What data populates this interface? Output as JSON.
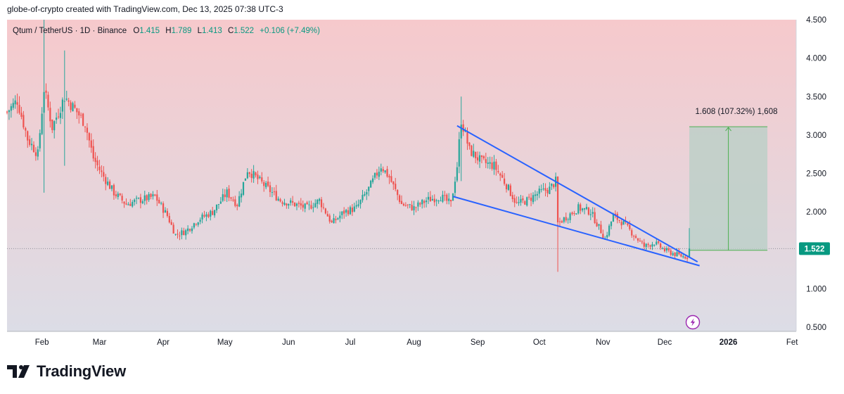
{
  "credit": "globe-of-crypto created with TradingView.com, Dec 13, 2025 07:38 UTC-3",
  "brand": "TradingView",
  "legend": {
    "symbol": "Qtum / TetherUS · 1D · Binance",
    "o_label": "O",
    "o_value": "1.415",
    "h_label": "H",
    "h_value": "1.789",
    "l_label": "L",
    "l_value": "1.413",
    "c_label": "C",
    "c_value": "1.522",
    "change": "+0.106 (+7.49%)"
  },
  "measure_label": "1.608 (107.32%) 1,608",
  "last_price": "1.522",
  "colors": {
    "up": "#26a69a",
    "down": "#ef5350",
    "wedge": "#2962ff",
    "bg_top": "#f6c9cc",
    "bg_bottom": "#dcdde6",
    "measure_fill": "#b7cfc6",
    "measure_line": "#4caf50",
    "price_tag": "#089981",
    "bolt": "#9c27b0"
  },
  "icons": {
    "bolt": "lightning-bolt-icon",
    "logo": "tradingview-logo-icon"
  },
  "chart_data": {
    "type": "candlestick",
    "title": "Qtum / TetherUS · 1D · Binance",
    "y_ticks": [
      "4.500",
      "4.000",
      "3.500",
      "3.000",
      "2.500",
      "2.000",
      "1.500",
      "1.000",
      "0.500"
    ],
    "x_ticks": [
      "Feb",
      "Mar",
      "Apr",
      "May",
      "Jun",
      "Jul",
      "Aug",
      "Sep",
      "Oct",
      "Nov",
      "Dec",
      "2026",
      "Fet"
    ],
    "ylim": [
      0.5,
      4.5
    ],
    "x_range": [
      "2025-01-15",
      "2026-02-03"
    ],
    "grid": false,
    "last_close": 1.522,
    "close_path": [
      [
        "2025-01-15",
        3.3
      ],
      [
        "2025-01-20",
        3.45
      ],
      [
        "2025-01-25",
        2.95
      ],
      [
        "2025-01-30",
        2.75
      ],
      [
        "2025-02-02",
        3.6
      ],
      [
        "2025-02-06",
        3.1
      ],
      [
        "2025-02-12",
        3.5
      ],
      [
        "2025-02-18",
        3.3
      ],
      [
        "2025-02-22",
        3.15
      ],
      [
        "2025-02-26",
        2.7
      ],
      [
        "2025-03-02",
        2.5
      ],
      [
        "2025-03-08",
        2.25
      ],
      [
        "2025-03-14",
        2.1
      ],
      [
        "2025-03-20",
        2.15
      ],
      [
        "2025-03-28",
        2.2
      ],
      [
        "2025-04-03",
        1.95
      ],
      [
        "2025-04-07",
        1.7
      ],
      [
        "2025-04-12",
        1.75
      ],
      [
        "2025-04-18",
        1.9
      ],
      [
        "2025-04-25",
        2.0
      ],
      [
        "2025-05-02",
        2.25
      ],
      [
        "2025-05-07",
        2.1
      ],
      [
        "2025-05-12",
        2.55
      ],
      [
        "2025-05-16",
        2.45
      ],
      [
        "2025-05-22",
        2.3
      ],
      [
        "2025-05-28",
        2.15
      ],
      [
        "2025-06-04",
        2.1
      ],
      [
        "2025-06-10",
        2.05
      ],
      [
        "2025-06-16",
        2.15
      ],
      [
        "2025-06-22",
        1.85
      ],
      [
        "2025-06-28",
        2.0
      ],
      [
        "2025-07-04",
        2.05
      ],
      [
        "2025-07-10",
        2.3
      ],
      [
        "2025-07-16",
        2.6
      ],
      [
        "2025-07-20",
        2.45
      ],
      [
        "2025-07-26",
        2.1
      ],
      [
        "2025-08-01",
        2.05
      ],
      [
        "2025-08-07",
        2.15
      ],
      [
        "2025-08-14",
        2.2
      ],
      [
        "2025-08-19",
        2.1
      ],
      [
        "2025-08-22",
        2.6
      ],
      [
        "2025-08-24",
        3.2
      ],
      [
        "2025-08-28",
        2.8
      ],
      [
        "2025-09-03",
        2.65
      ],
      [
        "2025-09-09",
        2.6
      ],
      [
        "2025-09-15",
        2.35
      ],
      [
        "2025-09-20",
        2.1
      ],
      [
        "2025-09-25",
        2.15
      ],
      [
        "2025-10-01",
        2.25
      ],
      [
        "2025-10-06",
        2.3
      ],
      [
        "2025-10-09",
        2.4
      ],
      [
        "2025-10-10",
        1.85
      ],
      [
        "2025-10-15",
        1.95
      ],
      [
        "2025-10-20",
        2.05
      ],
      [
        "2025-10-26",
        2.0
      ],
      [
        "2025-10-30",
        1.8
      ],
      [
        "2025-11-02",
        1.65
      ],
      [
        "2025-11-06",
        1.95
      ],
      [
        "2025-11-11",
        1.85
      ],
      [
        "2025-11-16",
        1.7
      ],
      [
        "2025-11-21",
        1.55
      ],
      [
        "2025-11-26",
        1.6
      ],
      [
        "2025-12-01",
        1.5
      ],
      [
        "2025-12-06",
        1.45
      ],
      [
        "2025-12-10",
        1.42
      ],
      [
        "2025-12-12",
        1.415
      ],
      [
        "2025-12-13",
        1.522
      ]
    ],
    "spikes": [
      {
        "date": "2025-02-02",
        "low": 2.25,
        "high": 4.5
      },
      {
        "date": "2025-02-12",
        "low": 2.6,
        "high": 4.1
      },
      {
        "date": "2025-10-10",
        "low": 1.22,
        "high": 2.45
      },
      {
        "date": "2025-08-24",
        "low": 2.4,
        "high": 3.5
      }
    ],
    "wedge_upper": [
      [
        "2025-08-22",
        3.12
      ],
      [
        "2025-12-17",
        1.35
      ]
    ],
    "wedge_lower": [
      [
        "2025-08-20",
        2.2
      ],
      [
        "2025-12-18",
        1.3
      ]
    ],
    "measurement": {
      "start_date": "2025-12-13",
      "end_date": "2026-01-20",
      "from": 1.5,
      "to": 3.108,
      "change": 1.608,
      "change_pct": 107.32
    }
  }
}
